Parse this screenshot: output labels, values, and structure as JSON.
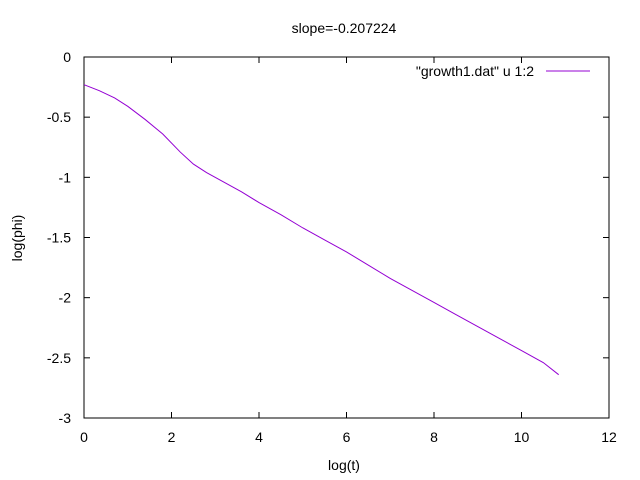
{
  "chart_data": {
    "type": "line",
    "title": "slope=-0.207224",
    "xlabel": "log(t)",
    "ylabel": "log(phi)",
    "xlim": [
      0,
      12
    ],
    "ylim": [
      -3,
      0
    ],
    "xticks": [
      0,
      2,
      4,
      6,
      8,
      10,
      12
    ],
    "yticks": [
      0,
      -0.5,
      -1,
      -1.5,
      -2,
      -2.5,
      -3
    ],
    "xtick_labels": [
      "0",
      "2",
      "4",
      "6",
      "8",
      "10",
      "12"
    ],
    "ytick_labels": [
      "0",
      "-0.5",
      "-1",
      "-1.5",
      "-2",
      "-2.5",
      "-3"
    ],
    "grid": false,
    "legend_position": "top-right",
    "series": [
      {
        "name": "\"growth1.dat\" u 1:2",
        "color": "#9400d3",
        "x": [
          0,
          0.35,
          0.7,
          1.0,
          1.4,
          1.8,
          2.2,
          2.5,
          2.8,
          3.2,
          3.6,
          4.0,
          4.5,
          5.0,
          5.5,
          6.0,
          6.5,
          7.0,
          7.5,
          8.0,
          8.5,
          9.0,
          9.5,
          10.0,
          10.5,
          10.85
        ],
        "y": [
          -0.23,
          -0.28,
          -0.34,
          -0.41,
          -0.52,
          -0.64,
          -0.79,
          -0.89,
          -0.96,
          -1.04,
          -1.12,
          -1.21,
          -1.31,
          -1.42,
          -1.52,
          -1.62,
          -1.73,
          -1.84,
          -1.94,
          -2.04,
          -2.14,
          -2.24,
          -2.34,
          -2.44,
          -2.54,
          -2.64
        ]
      }
    ]
  }
}
